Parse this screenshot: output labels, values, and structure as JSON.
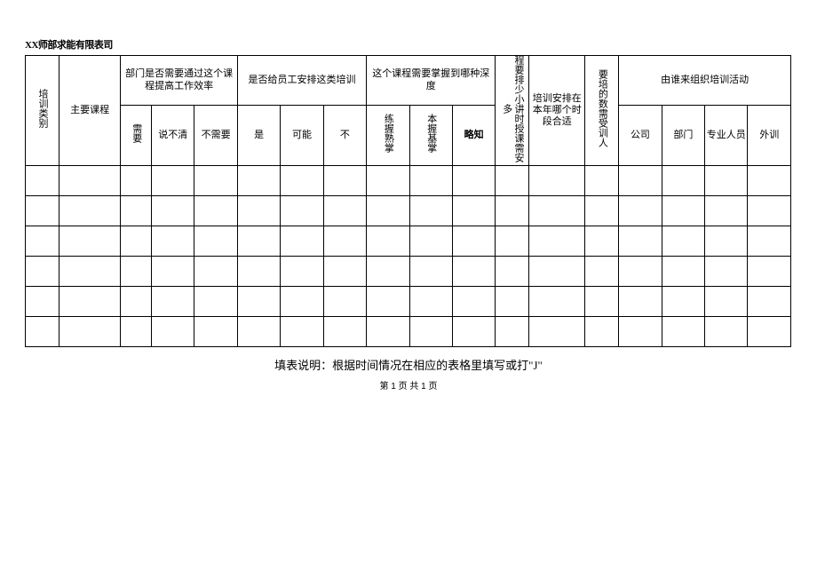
{
  "title": "XX师部求能有限表司",
  "header": {
    "col_category": "培训类别",
    "col_course": "主要课程",
    "group_dept_need": "部门是否需要通过这个课程提高工作效率",
    "group_arrange": "是否给员工安排这类培训",
    "group_depth": "这个课程需要掌握到哪种深度",
    "col_hours": "程要排少小讲时授课需安多",
    "col_timing": "培训安排在本年哪个时段合适",
    "col_trainees": "要培的数需受训人",
    "group_organizer": "由谁来组织培训活动",
    "sub": {
      "need_yes": "需要",
      "need_unclear": "说不清",
      "need_no": "不需要",
      "arr_yes": "是",
      "arr_maybe": "可能",
      "arr_no": "不",
      "depth_practice": "练握熟掌",
      "depth_basic": "本握基掌",
      "depth_brief": "略知",
      "org_company": "公司",
      "org_dept": "部门",
      "org_pro": "专业人员",
      "org_ext": "外训"
    }
  },
  "body_rows": 6,
  "footnote": "填表说明：根据时间情况在相应的表格里填写或打\"J\"",
  "pager": "第 1 页 共 1 页",
  "layout": {
    "col_widths": {
      "category": 36,
      "course": 66,
      "need_yes": 33,
      "need_unclear": 46,
      "need_no": 46,
      "arr_yes": 46,
      "arr_maybe": 46,
      "arr_no": 46,
      "depth_practice": 46,
      "depth_basic": 46,
      "depth_brief": 46,
      "hours": 36,
      "timing": 60,
      "trainees": 36,
      "org_company": 46,
      "org_dept": 46,
      "org_pro": 46,
      "org_ext": 46
    },
    "border_color": "#000000",
    "background_color": "#ffffff",
    "font_size_table": 11,
    "font_size_footnote": 13,
    "font_size_pager": 10
  }
}
